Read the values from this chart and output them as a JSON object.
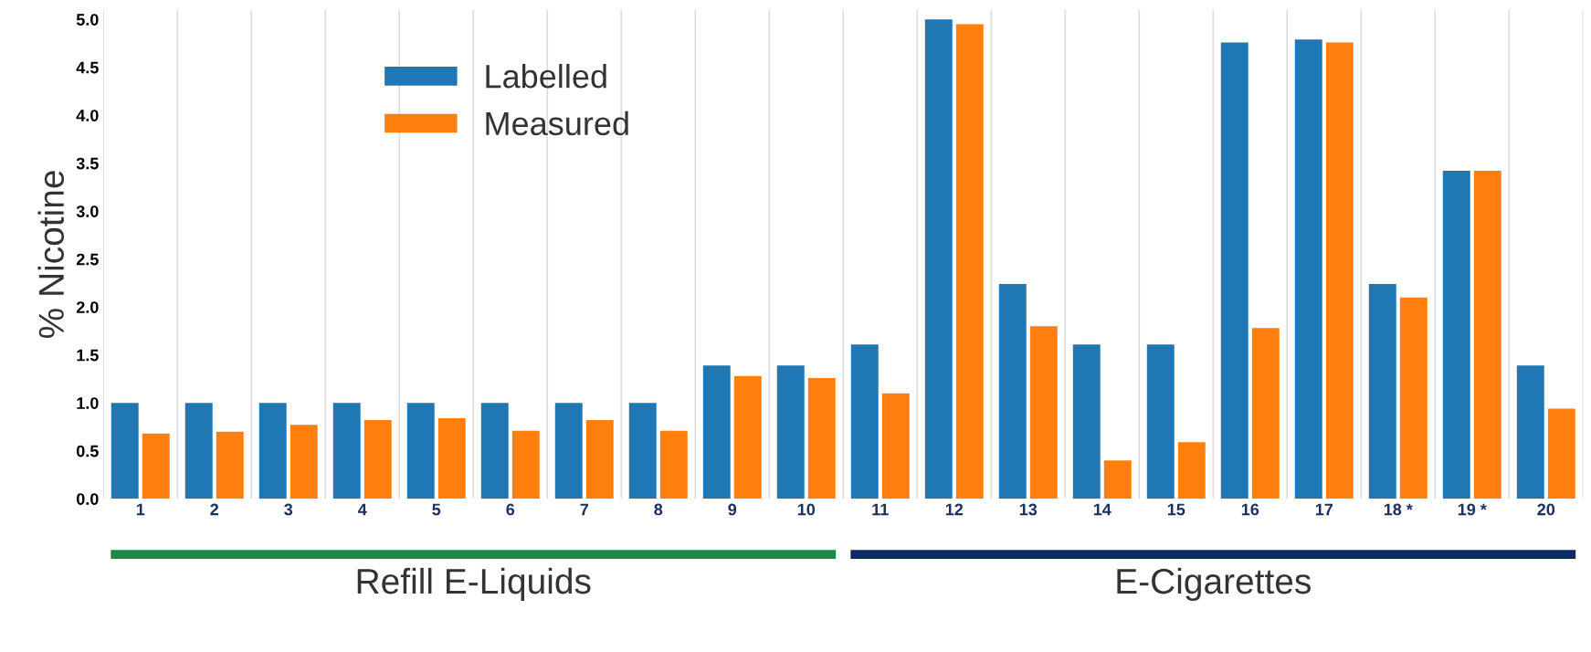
{
  "chart_data": {
    "type": "bar",
    "ylabel": "% Nicotine",
    "categories": [
      "1",
      "2",
      "3",
      "4",
      "5",
      "6",
      "7",
      "8",
      "9",
      "10",
      "11",
      "12",
      "13",
      "14",
      "15",
      "16",
      "17",
      "18 *",
      "19 *",
      "20"
    ],
    "series": [
      {
        "name": "Labelled",
        "color": "#1f77b4",
        "values": [
          1.0,
          1.0,
          1.0,
          1.0,
          1.0,
          1.0,
          1.0,
          1.0,
          1.39,
          1.39,
          1.61,
          5.0,
          2.24,
          1.61,
          1.61,
          4.76,
          4.79,
          2.24,
          3.42,
          1.39
        ]
      },
      {
        "name": "Measured",
        "color": "#ff7f0e",
        "values": [
          0.68,
          0.7,
          0.77,
          0.82,
          0.84,
          0.71,
          0.82,
          0.71,
          1.28,
          1.26,
          1.1,
          4.95,
          1.8,
          0.4,
          0.59,
          1.78,
          4.76,
          2.1,
          3.42,
          0.94
        ]
      }
    ],
    "ylim": [
      0,
      5.1
    ],
    "yticks": [
      {
        "value": 0,
        "label": "0.0"
      },
      0.5,
      {
        "value": 1,
        "label": "1.0"
      },
      1.5,
      {
        "value": 2,
        "label": "2.0"
      },
      2.5,
      {
        "value": 3,
        "label": "3.0"
      },
      3.5,
      {
        "value": 4,
        "label": "4.0"
      },
      4.5,
      {
        "value": 5,
        "label": "5.0"
      }
    ],
    "grid": "x",
    "legend": "top left",
    "annotations": [
      "Refill E-Liquids",
      "E-Cigarettes"
    ]
  }
}
